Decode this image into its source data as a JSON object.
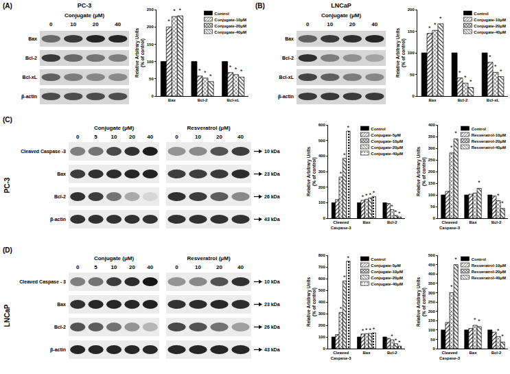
{
  "panels": [
    {
      "label": "(A)",
      "cell_line": "PC-3",
      "rows": [
        {
          "label": "Bax"
        },
        {
          "label": "Bcl-2"
        },
        {
          "label": "Bcl-xL"
        },
        {
          "label": "β-actin"
        }
      ],
      "blots": [
        {
          "header": "Conjugate (μM)",
          "lanes": [
            0,
            10,
            20,
            40
          ],
          "band_intensity": [
            [
              0.55,
              0.8,
              0.9,
              0.9
            ],
            [
              0.8,
              0.55,
              0.5,
              0.45
            ],
            [
              0.6,
              0.45,
              0.4,
              0.38
            ],
            [
              0.7,
              0.7,
              0.7,
              0.7
            ]
          ]
        }
      ]
    },
    {
      "label": "(B)",
      "cell_line": "LNCaP",
      "rows": [
        {
          "label": "Bax"
        },
        {
          "label": "Bcl-2"
        },
        {
          "label": "Bcl-xL"
        },
        {
          "label": "β-actin"
        }
      ],
      "blots": [
        {
          "header": "Conjugate (μM)",
          "lanes": [
            0,
            10,
            20,
            40
          ],
          "band_intensity": [
            [
              0.6,
              0.8,
              0.85,
              0.9
            ],
            [
              0.85,
              0.45,
              0.35,
              0.25
            ],
            [
              0.75,
              0.6,
              0.45,
              0.4
            ],
            [
              0.8,
              0.8,
              0.8,
              0.8
            ]
          ]
        }
      ]
    },
    {
      "label": "(C)",
      "cell_line": "PC-3",
      "rows": [
        {
          "label": "Cleaved Caspase -3",
          "size": "10 kDa"
        },
        {
          "label": "Bax",
          "size": "23 kDa"
        },
        {
          "label": "Bcl-2",
          "size": "26 kDa"
        },
        {
          "label": "β-actin",
          "size": "43 kDa"
        }
      ],
      "blots": [
        {
          "header": "Conjugate (μM)",
          "lanes": [
            0,
            5,
            10,
            20,
            40
          ],
          "band_intensity": [
            [
              0.5,
              0.55,
              0.75,
              0.85,
              0.95
            ],
            [
              0.8,
              0.85,
              0.88,
              0.9,
              0.92
            ],
            [
              0.85,
              0.8,
              0.55,
              0.3,
              0.1
            ],
            [
              0.85,
              0.85,
              0.85,
              0.85,
              0.85
            ]
          ]
        },
        {
          "header": "Resveratrol (μM)",
          "lanes": [
            0,
            10,
            20,
            40
          ],
          "band_intensity": [
            [
              0.4,
              0.45,
              0.7,
              0.8
            ],
            [
              0.8,
              0.8,
              0.82,
              0.88
            ],
            [
              0.85,
              0.8,
              0.65,
              0.45
            ],
            [
              0.85,
              0.85,
              0.85,
              0.85
            ]
          ]
        }
      ]
    },
    {
      "label": "(D)",
      "cell_line": "LNCaP",
      "rows": [
        {
          "label": "Cleaved Caspase - 3",
          "size": "10 kDa"
        },
        {
          "label": "Bax",
          "size": "23 kDa"
        },
        {
          "label": "Bcl-2",
          "size": "26 kDa"
        },
        {
          "label": "β-actin",
          "size": "43 kDa"
        }
      ],
      "blots": [
        {
          "header": "Conjugate (μM)",
          "lanes": [
            0,
            5,
            10,
            20,
            40
          ],
          "band_intensity": [
            [
              0.5,
              0.55,
              0.8,
              0.88,
              0.98
            ],
            [
              0.85,
              0.9,
              0.9,
              0.9,
              0.92
            ],
            [
              0.7,
              0.65,
              0.55,
              0.4,
              0.25
            ],
            [
              0.9,
              0.9,
              0.9,
              0.9,
              0.9
            ]
          ]
        },
        {
          "header": "Resveratrol (μM)",
          "lanes": [
            0,
            10,
            20,
            40
          ],
          "band_intensity": [
            [
              0.4,
              0.45,
              0.7,
              0.85
            ],
            [
              0.85,
              0.88,
              0.9,
              0.88
            ],
            [
              0.75,
              0.7,
              0.55,
              0.35
            ],
            [
              0.9,
              0.9,
              0.9,
              0.9
            ]
          ]
        }
      ]
    }
  ],
  "chart_data": [
    {
      "type": "bar",
      "categories": [
        "Bax",
        "Bcl-2",
        "Bcl-xL"
      ],
      "y_label": [
        "Relative Arbitrary Units",
        "(% of control)"
      ],
      "ylim": [
        0,
        250
      ],
      "yticks": [
        0,
        50,
        100,
        150,
        200,
        250
      ],
      "legend": "upper right",
      "series": [
        {
          "name": "Control",
          "color": "#000000",
          "values": [
            100,
            100,
            100
          ],
          "significance": [
            null,
            null,
            null
          ]
        },
        {
          "name": "Conjugate-10μM",
          "color": "#ffffff",
          "values": [
            200,
            58,
            68
          ],
          "significance": [
            "*",
            "*",
            "*"
          ]
        },
        {
          "name": "Conjugate-20μM",
          "color": "#ffffff",
          "values": [
            230,
            52,
            62
          ],
          "significance": [
            "*",
            "*",
            "*"
          ]
        },
        {
          "name": "Conjugate-40μM",
          "color": "#ffffff",
          "values": [
            232,
            42,
            55
          ],
          "significance": [
            "*",
            "*",
            "*"
          ]
        }
      ]
    },
    {
      "type": "bar",
      "categories": [
        "Bax",
        "Bcl-2",
        "Bcl-xL"
      ],
      "y_label": [
        "Relative Arbitrary Units",
        "(% of control)"
      ],
      "ylim": [
        0,
        200
      ],
      "yticks": [
        0,
        50,
        100,
        150,
        200
      ],
      "legend": "upper right",
      "series": [
        {
          "name": "Control",
          "color": "#000000",
          "values": [
            100,
            100,
            100
          ],
          "significance": [
            null,
            null,
            null
          ]
        },
        {
          "name": "Conjugate-10μM",
          "color": "#ffffff",
          "values": [
            145,
            42,
            78
          ],
          "significance": [
            "*",
            "*",
            "*"
          ]
        },
        {
          "name": "Conjugate-20μM",
          "color": "#ffffff",
          "values": [
            152,
            30,
            55
          ],
          "significance": [
            "*",
            "*",
            "*"
          ]
        },
        {
          "name": "Conjugate-40μM",
          "color": "#ffffff",
          "values": [
            167,
            20,
            45
          ],
          "significance": [
            "*",
            "*",
            "*"
          ]
        }
      ]
    },
    {
      "type": "bar",
      "categories": [
        "Cleaved Caspase-3",
        "Bax",
        "Bcl-2"
      ],
      "y_label": [
        "Relative Arbitrary Units",
        "(% of control)"
      ],
      "ylim": [
        0,
        600
      ],
      "yticks": [
        0,
        100,
        200,
        300,
        400,
        500,
        600
      ],
      "legend": "upper right",
      "series": [
        {
          "name": "Control",
          "color": "#000000",
          "values": [
            100,
            100,
            100
          ],
          "significance": [
            null,
            null,
            null
          ]
        },
        {
          "name": "Conjugate-5μM",
          "color": "#ffffff",
          "values": [
            120,
            115,
            95
          ],
          "significance": [
            null,
            "*",
            null
          ]
        },
        {
          "name": "Conjugate-10μM",
          "color": "#ffffff",
          "values": [
            265,
            122,
            55
          ],
          "significance": [
            "*",
            "*",
            "*"
          ]
        },
        {
          "name": "Conjugate-20μM",
          "color": "#ffffff",
          "values": [
            385,
            130,
            18
          ],
          "significance": [
            "*",
            "*",
            "*"
          ]
        },
        {
          "name": "Conjugate-40μM",
          "color": "#ffffff",
          "values": [
            560,
            140,
            8
          ],
          "significance": [
            "*",
            "*",
            "*"
          ]
        }
      ]
    },
    {
      "type": "bar",
      "categories": [
        "Cleaved Caspase-3",
        "Bax",
        "Bcl-2"
      ],
      "y_label": [
        "Relative Arbitrary Units",
        "(% of control)"
      ],
      "ylim": [
        0,
        400
      ],
      "yticks": [
        0,
        50,
        100,
        150,
        200,
        250,
        300,
        350,
        400
      ],
      "legend": "upper right",
      "series": [
        {
          "name": "Control",
          "color": "#000000",
          "values": [
            100,
            100,
            100
          ],
          "significance": [
            null,
            null,
            null
          ]
        },
        {
          "name": "Resveratrol-10μM",
          "color": "#ffffff",
          "values": [
            115,
            103,
            95
          ],
          "significance": [
            null,
            null,
            null
          ]
        },
        {
          "name": "Resveratrol-20μM",
          "color": "#ffffff",
          "values": [
            280,
            108,
            75
          ],
          "significance": [
            "*",
            null,
            "*"
          ]
        },
        {
          "name": "Resveratrol-40μM",
          "color": "#ffffff",
          "values": [
            340,
            128,
            42
          ],
          "significance": [
            "*",
            "*",
            "*"
          ]
        }
      ]
    },
    {
      "type": "bar",
      "categories": [
        "Cleaved Caspase-3",
        "Bax",
        "Bcl-2"
      ],
      "y_label": [
        "Relative Arbitrary Units",
        "(% of control)"
      ],
      "ylim": [
        0,
        800
      ],
      "yticks": [
        0,
        100,
        200,
        300,
        400,
        500,
        600,
        700,
        800
      ],
      "legend": "upper right",
      "series": [
        {
          "name": "Control",
          "color": "#000000",
          "values": [
            100,
            100,
            100
          ],
          "significance": [
            null,
            null,
            null
          ]
        },
        {
          "name": "Conjugate-5μM",
          "color": "#ffffff",
          "values": [
            120,
            125,
            88
          ],
          "significance": [
            null,
            "*",
            null
          ]
        },
        {
          "name": "Conjugate-10μM",
          "color": "#ffffff",
          "values": [
            310,
            128,
            75
          ],
          "significance": [
            "*",
            "*",
            "*"
          ]
        },
        {
          "name": "Conjugate-20μM",
          "color": "#ffffff",
          "values": [
            580,
            130,
            42
          ],
          "significance": [
            "*",
            "*",
            "*"
          ]
        },
        {
          "name": "Conjugate-40μM",
          "color": "#ffffff",
          "values": [
            750,
            135,
            22
          ],
          "significance": [
            "*",
            "*",
            "*"
          ]
        }
      ]
    },
    {
      "type": "bar",
      "categories": [
        "Cleaved Caspase-3",
        "Bax",
        "Bcl-2"
      ],
      "y_label": [
        "Relative Arbitrary Units",
        "(% of control)"
      ],
      "ylim": [
        0,
        500
      ],
      "yticks": [
        0,
        50,
        100,
        150,
        200,
        250,
        300,
        350,
        400,
        450,
        500
      ],
      "legend": "upper right",
      "series": [
        {
          "name": "Control",
          "color": "#000000",
          "values": [
            100,
            100,
            100
          ],
          "significance": [
            null,
            null,
            null
          ]
        },
        {
          "name": "Resveratrol-10μM",
          "color": "#ffffff",
          "values": [
            140,
            108,
            88
          ],
          "significance": [
            null,
            null,
            null
          ]
        },
        {
          "name": "Resveratrol-20μM",
          "color": "#ffffff",
          "values": [
            300,
            125,
            65
          ],
          "significance": [
            "*",
            "*",
            "*"
          ]
        },
        {
          "name": "Resveratrol-40μM",
          "color": "#ffffff",
          "values": [
            450,
            118,
            35
          ],
          "significance": [
            "*",
            "*",
            "*"
          ]
        }
      ]
    }
  ]
}
